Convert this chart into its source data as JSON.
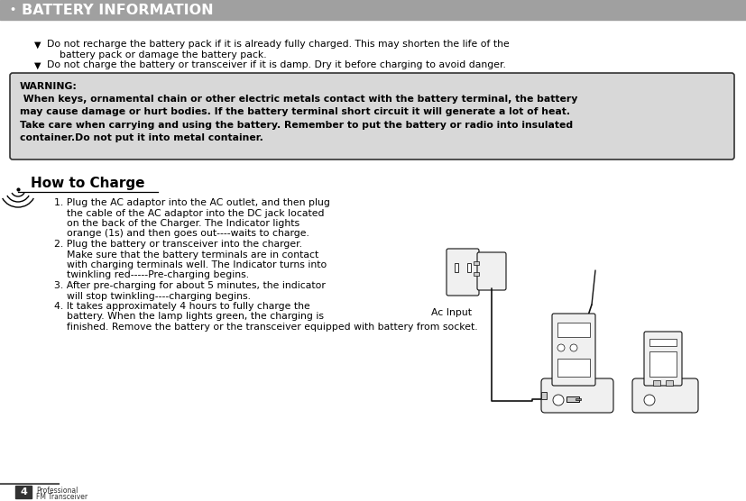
{
  "page_bg": "#ffffff",
  "header_bg": "#a0a0a0",
  "header_text": "BATTERY INFORMATION",
  "header_bullet": "•",
  "header_font_size": 11.5,
  "warning_box_bg": "#d8d8d8",
  "warning_box_border": "#333333",
  "warning_title": "WARNING:",
  "warning_body": " When keys, ornamental chain or other electric metals contact with the battery terminal, the battery\nmay cause damage or hurt bodies. If the battery terminal short circuit it will generate a lot of heat.\nTake care when carrying and using the battery. Remember to put the battery or radio into insulated\ncontainer.Do not put it into metal container.",
  "section_title": "How to Charge",
  "step1_a": "1. Plug the AC adaptor into the AC outlet, and then plug",
  "step1_b": "    the cable of the AC adaptor into the DC jack located",
  "step1_c": "    on the back of the Charger. The Indicator lights",
  "step1_d": "    orange (1s) and then goes out----waits to charge.",
  "step2_a": "2. Plug the battery or transceiver into the charger.",
  "step2_b": "    Make sure that the battery terminals are in contact",
  "step2_c": "    with charging terminals well. The Indicator turns into",
  "step2_d": "    twinkling red-----Pre-charging begins.",
  "step3_a": "3. After pre-charging for about 5 minutes, the indicator",
  "step3_b": "    will stop twinkling----charging begins.",
  "step4_a": "4. It takes approximately 4 hours to fully charge the",
  "step4_b": "    battery. When the lamp lights green, the charging is",
  "step4_c": "    finished. Remove the battery or the transceiver equipped with battery from socket.",
  "bullet1_a": "Do not recharge the battery pack if it is already fully charged. This may shorten the life of the",
  "bullet1_b": "    battery pack or damage the battery pack.",
  "bullet2": "Do not charge the battery or transceiver if it is damp. Dry it before charging to avoid danger.",
  "ac_input_label": "Ac Input",
  "footer_number": "4",
  "footer_text1": "Professional",
  "footer_text2": "FM Transceiver",
  "body_font_size": 7.8,
  "warn_font_size": 7.8,
  "small_font_size": 5.5,
  "line_color": "#111111",
  "fill_light": "#f0f0f0",
  "fill_mid": "#cccccc",
  "fill_dark": "#888888"
}
